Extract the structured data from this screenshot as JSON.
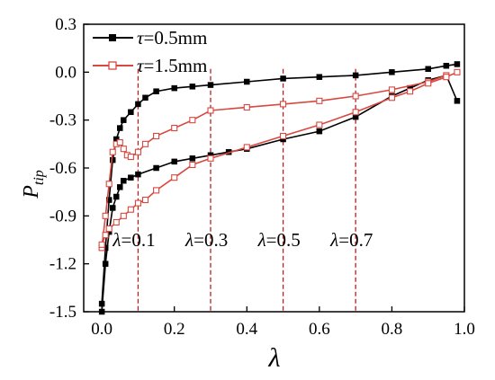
{
  "chart_data": {
    "type": "line",
    "title": "",
    "xlabel": "λ",
    "ylabel_main": "P",
    "ylabel_sub": "tip",
    "xlim": [
      -0.05,
      1.0
    ],
    "ylim": [
      -1.5,
      0.3
    ],
    "x_ticks": [
      0.0,
      0.2,
      0.4,
      0.6,
      0.8,
      1.0
    ],
    "x_tick_labels": [
      "0.0",
      "0.2",
      "0.4",
      "0.6",
      "0.8",
      "1.0"
    ],
    "y_ticks": [
      0.3,
      0.0,
      -0.3,
      -0.6,
      -0.9,
      -1.2,
      -1.5
    ],
    "y_tick_labels": [
      "0.3",
      "0.0",
      "-0.3",
      "-0.6",
      "-0.9",
      "-1.2",
      "-1.5"
    ],
    "grid": false,
    "legend_position": "top-left",
    "colors": {
      "series1": "#000000",
      "series2": "#d8483f",
      "guides": "#b22222"
    },
    "series": [
      {
        "name_prefix": "τ",
        "name_suffix": "=0.5mm",
        "marker": "filled-square",
        "color": "#000000",
        "upper": {
          "x": [
            0.0,
            0.01,
            0.02,
            0.03,
            0.04,
            0.05,
            0.06,
            0.08,
            0.1,
            0.12,
            0.15,
            0.2,
            0.25,
            0.3,
            0.4,
            0.5,
            0.6,
            0.7,
            0.8,
            0.9,
            0.95,
            0.98
          ],
          "y": [
            -1.45,
            -1.1,
            -0.8,
            -0.55,
            -0.42,
            -0.35,
            -0.3,
            -0.25,
            -0.2,
            -0.16,
            -0.12,
            -0.1,
            -0.09,
            -0.08,
            -0.06,
            -0.04,
            -0.03,
            -0.02,
            0.0,
            0.02,
            0.04,
            0.05
          ]
        },
        "lower": {
          "x": [
            0.98,
            0.95,
            0.9,
            0.85,
            0.8,
            0.7,
            0.6,
            0.5,
            0.4,
            0.35,
            0.3,
            0.25,
            0.2,
            0.15,
            0.1,
            0.08,
            0.06,
            0.05,
            0.04,
            0.03,
            0.02,
            0.01,
            0.0
          ],
          "y": [
            -0.18,
            -0.02,
            -0.05,
            -0.1,
            -0.15,
            -0.28,
            -0.37,
            -0.42,
            -0.48,
            -0.5,
            -0.52,
            -0.54,
            -0.56,
            -0.6,
            -0.64,
            -0.66,
            -0.68,
            -0.72,
            -0.78,
            -0.85,
            -1.0,
            -1.2,
            -1.5
          ]
        }
      },
      {
        "name_prefix": "τ",
        "name_suffix": "=1.5mm",
        "marker": "open-square",
        "color": "#d8483f",
        "upper": {
          "x": [
            0.0,
            0.01,
            0.02,
            0.03,
            0.04,
            0.05,
            0.06,
            0.07,
            0.08,
            0.1,
            0.12,
            0.15,
            0.2,
            0.25,
            0.3,
            0.4,
            0.5,
            0.6,
            0.7,
            0.8,
            0.9,
            0.95
          ],
          "y": [
            -1.1,
            -0.9,
            -0.7,
            -0.5,
            -0.45,
            -0.44,
            -0.48,
            -0.52,
            -0.53,
            -0.5,
            -0.45,
            -0.4,
            -0.35,
            -0.3,
            -0.24,
            -0.22,
            -0.2,
            -0.18,
            -0.15,
            -0.11,
            -0.06,
            -0.02
          ]
        },
        "lower": {
          "x": [
            0.98,
            0.95,
            0.9,
            0.85,
            0.8,
            0.7,
            0.6,
            0.5,
            0.4,
            0.3,
            0.25,
            0.2,
            0.15,
            0.12,
            0.1,
            0.08,
            0.06,
            0.04,
            0.02,
            0.01,
            0.0
          ],
          "y": [
            0.0,
            -0.03,
            -0.07,
            -0.12,
            -0.16,
            -0.25,
            -0.33,
            -0.4,
            -0.47,
            -0.54,
            -0.58,
            -0.66,
            -0.74,
            -0.8,
            -0.82,
            -0.86,
            -0.9,
            -0.94,
            -0.98,
            -1.02,
            -1.08
          ]
        }
      }
    ],
    "annotations": [
      {
        "x": 0.1,
        "label_prefix": "λ",
        "label_suffix": "=0.1",
        "label_y": -1.05
      },
      {
        "x": 0.3,
        "label_prefix": "λ",
        "label_suffix": "=0.3",
        "label_y": -1.05
      },
      {
        "x": 0.5,
        "label_prefix": "λ",
        "label_suffix": "=0.5",
        "label_y": -1.05
      },
      {
        "x": 0.7,
        "label_prefix": "λ",
        "label_suffix": "=0.7",
        "label_y": -1.05
      }
    ]
  }
}
